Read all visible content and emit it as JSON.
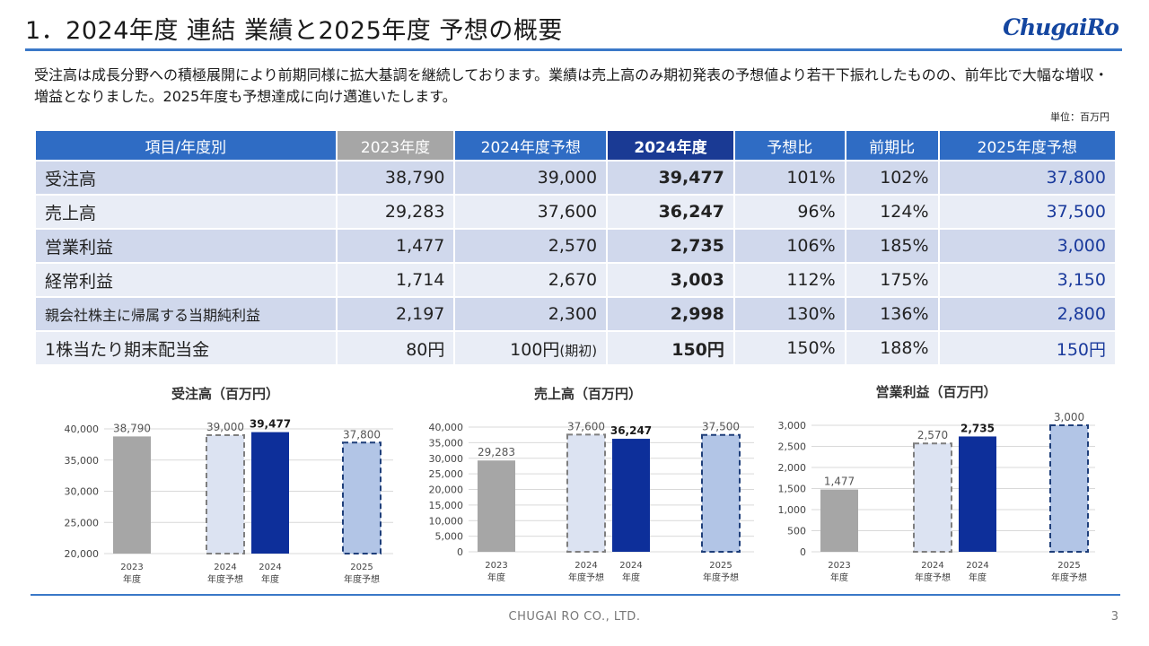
{
  "header": {
    "title": "1．2024年度 連結 業績と2025年度 予想の概要",
    "logo": "ChugaiRo"
  },
  "intro": "受注高は成長分野への積極展開により前期同様に拡大基調を継続しております。業績は売上高のみ期初発表の予想値より若干下振れしたものの、前年比で大幅な増収・増益となりました。2025年度も予想達成に向け邁進いたします。",
  "unit": "単位：百万円",
  "table": {
    "headers": [
      "項目/年度別",
      "2023年度",
      "2024年度予想",
      "2024年度",
      "予想比",
      "前期比",
      "2025年度予想"
    ],
    "rows": [
      {
        "item": "受注高",
        "y2023": "38,790",
        "y2024f": "39,000",
        "y2024": "39,477",
        "vs_forecast": "101%",
        "vs_prev": "102%",
        "y2025f": "37,800"
      },
      {
        "item": "売上高",
        "y2023": "29,283",
        "y2024f": "37,600",
        "y2024": "36,247",
        "vs_forecast": "96%",
        "vs_prev": "124%",
        "y2025f": "37,500"
      },
      {
        "item": "営業利益",
        "y2023": "1,477",
        "y2024f": "2,570",
        "y2024": "2,735",
        "vs_forecast": "106%",
        "vs_prev": "185%",
        "y2025f": "3,000"
      },
      {
        "item": "経常利益",
        "y2023": "1,714",
        "y2024f": "2,670",
        "y2024": "3,003",
        "vs_forecast": "112%",
        "vs_prev": "175%",
        "y2025f": "3,150"
      },
      {
        "item": "親会社株主に帰属する当期純利益",
        "y2023": "2,197",
        "y2024f": "2,300",
        "y2024": "2,998",
        "vs_forecast": "130%",
        "vs_prev": "136%",
        "y2025f": "2,800"
      },
      {
        "item": "1株当たり期末配当金",
        "y2023": "80円",
        "y2024f_main": "100円",
        "y2024f_note": "(期初)",
        "y2024": "150円",
        "vs_forecast": "150%",
        "vs_prev": "188%",
        "y2025f": "150円"
      }
    ]
  },
  "colors": {
    "bar_2023": "#a6a6a6",
    "bar_2024f": "#dce3f2",
    "bar_2024": "#0d2f9a",
    "bar_2025f": "#b2c5e6",
    "accent": "#2f6cc4"
  },
  "chart_data": [
    {
      "type": "bar",
      "title": "受注高（百万円）",
      "categories": [
        "2023\n年度",
        "2024\n年度予想",
        "2024\n年度",
        "2025\n年度予想"
      ],
      "values": [
        38790,
        39000,
        39477,
        37800
      ],
      "value_labels": [
        "38,790",
        "39,000",
        "39,477",
        "37,800"
      ],
      "ylim": [
        20000,
        40000
      ],
      "yticks": [
        20000,
        25000,
        30000,
        35000,
        40000
      ],
      "ytick_labels": [
        "20,000",
        "25,000",
        "30,000",
        "35,000",
        "40,000"
      ],
      "grid": true
    },
    {
      "type": "bar",
      "title": "売上高（百万円）",
      "categories": [
        "2023\n年度",
        "2024\n年度予想",
        "2024\n年度",
        "2025\n年度予想"
      ],
      "values": [
        29283,
        37600,
        36247,
        37500
      ],
      "value_labels": [
        "29,283",
        "37,600",
        "36,247",
        "37,500"
      ],
      "ylim": [
        0,
        40000
      ],
      "yticks": [
        0,
        5000,
        10000,
        15000,
        20000,
        25000,
        30000,
        35000,
        40000
      ],
      "ytick_labels": [
        "0",
        "5,000",
        "10,000",
        "15,000",
        "20,000",
        "25,000",
        "30,000",
        "35,000",
        "40,000"
      ],
      "grid": true
    },
    {
      "type": "bar",
      "title": "営業利益（百万円）",
      "categories": [
        "2023\n年度",
        "2024\n年度予想",
        "2024\n年度",
        "2025\n年度予想"
      ],
      "values": [
        1477,
        2570,
        2735,
        3000
      ],
      "value_labels": [
        "1,477",
        "2,570",
        "2,735",
        "3,000"
      ],
      "ylim": [
        0,
        3000
      ],
      "yticks": [
        0,
        500,
        1000,
        1500,
        2000,
        2500,
        3000
      ],
      "ytick_labels": [
        "0",
        "500",
        "1,000",
        "1,500",
        "2,000",
        "2,500",
        "3,000"
      ],
      "grid": true
    }
  ],
  "footer": "CHUGAI RO CO., LTD.",
  "page_number": "3"
}
